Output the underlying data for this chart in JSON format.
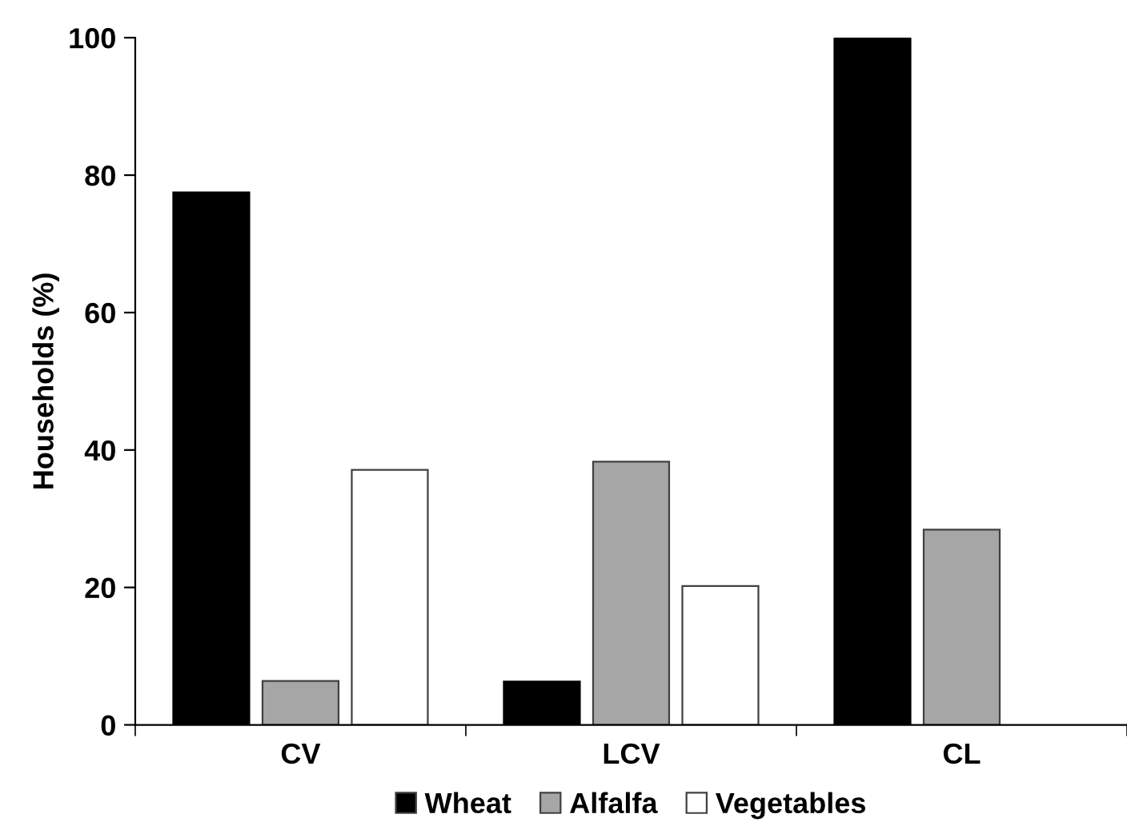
{
  "chart_data": {
    "type": "bar",
    "ylabel": "Households (%)",
    "categories": [
      "CV",
      "LCV",
      "CL"
    ],
    "series": [
      {
        "name": "Wheat",
        "color": "#000000",
        "values": [
          77.5,
          6.3,
          100
        ]
      },
      {
        "name": "Alfalfa",
        "color": "#a6a6a6",
        "values": [
          6.4,
          38.3,
          28.4
        ]
      },
      {
        "name": "Vegetables",
        "color": "#ffffff",
        "values": [
          37.1,
          20.2,
          null
        ]
      }
    ],
    "ylim": [
      0,
      100
    ],
    "yticks": [
      0,
      20,
      40,
      60,
      80,
      100
    ],
    "grid": false,
    "legend": "bottom"
  }
}
